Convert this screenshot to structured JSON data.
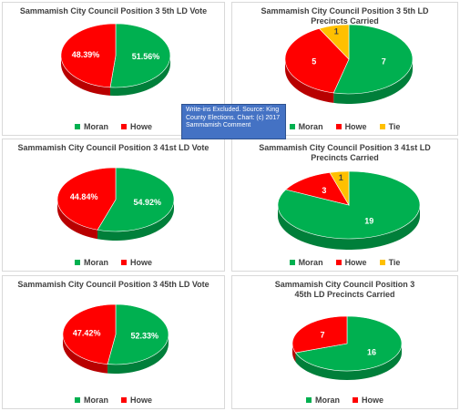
{
  "colors": {
    "Moran": "#00b050",
    "Howe": "#ff0000",
    "Tie": "#ffc000"
  },
  "note": "Write-ins Excluded. Source: King\nCounty Elections. Chart: (c) 2017\nSammamish Comment",
  "chart_data": [
    {
      "type": "pie",
      "title": "Sammamish City Council Position 3 5th LD Vote",
      "series": [
        {
          "name": "",
          "values": [
            51.56,
            48.39
          ]
        }
      ],
      "categories": [
        "Moran",
        "Howe"
      ],
      "labels": [
        "51.56%",
        "48.39%"
      ],
      "legend": [
        "Moran",
        "Howe"
      ],
      "legend_position": "bottom"
    },
    {
      "type": "pie",
      "title": "Sammamish City Council Position 3 5th LD\nPrecincts Carried",
      "series": [
        {
          "name": "",
          "values": [
            7,
            5,
            1
          ]
        }
      ],
      "categories": [
        "Moran",
        "Howe",
        "Tie"
      ],
      "labels": [
        "7",
        "5",
        "1"
      ],
      "legend": [
        "Moran",
        "Howe",
        "Tie"
      ],
      "legend_position": "bottom"
    },
    {
      "type": "pie",
      "title": "Sammamish City Council Position 3 41st LD Vote",
      "series": [
        {
          "name": "",
          "values": [
            54.92,
            44.84
          ]
        }
      ],
      "categories": [
        "Moran",
        "Howe"
      ],
      "labels": [
        "54.92%",
        "44.84%"
      ],
      "legend": [
        "Moran",
        "Howe"
      ],
      "legend_position": "bottom"
    },
    {
      "type": "pie",
      "title": "Sammamish City Council Position 3  41st LD\nPrecincts Carried",
      "series": [
        {
          "name": "",
          "values": [
            19,
            3,
            1
          ]
        }
      ],
      "categories": [
        "Moran",
        "Howe",
        "Tie"
      ],
      "labels": [
        "19",
        "3",
        "1"
      ],
      "legend": [
        "Moran",
        "Howe",
        "Tie"
      ],
      "legend_position": "bottom"
    },
    {
      "type": "pie",
      "title": "Sammamish City Council Position 3 45th LD Vote",
      "series": [
        {
          "name": "",
          "values": [
            52.33,
            47.42
          ]
        }
      ],
      "categories": [
        "Moran",
        "Howe"
      ],
      "labels": [
        "52.33%",
        "47.42%"
      ],
      "legend": [
        "Moran",
        "Howe"
      ],
      "legend_position": "bottom"
    },
    {
      "type": "pie",
      "title": "Sammamish City Council Position 3\n45th LD Precincts Carried",
      "series": [
        {
          "name": "",
          "values": [
            16,
            7
          ]
        }
      ],
      "categories": [
        "Moran",
        "Howe"
      ],
      "labels": [
        "16",
        "7"
      ],
      "legend": [
        "Moran",
        "Howe"
      ],
      "legend_position": "bottom"
    }
  ]
}
